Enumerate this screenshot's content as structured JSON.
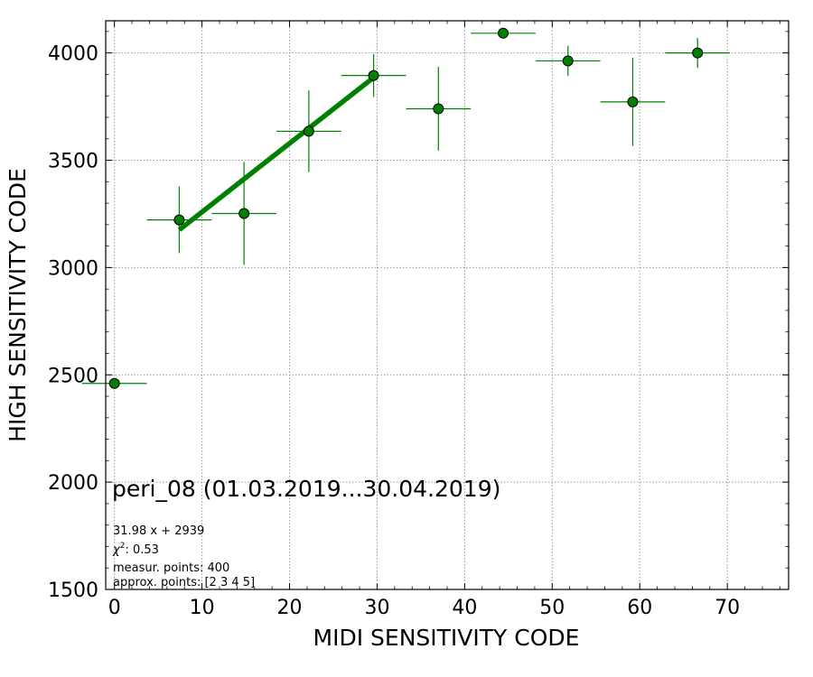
{
  "chart_data": {
    "type": "scatter",
    "xlabel": "MIDI SENSITIVITY CODE",
    "ylabel": "HIGH SENSITIVITY CODE",
    "xlim": [
      -1,
      77
    ],
    "ylim": [
      1500,
      4150
    ],
    "xticks": [
      0,
      10,
      20,
      30,
      40,
      50,
      60,
      70
    ],
    "yticks": [
      1500,
      2000,
      2500,
      3000,
      3500,
      4000
    ],
    "grid": true,
    "colors": {
      "points": "#008000",
      "fit_line": "#008000",
      "grid": "#999999"
    },
    "points": [
      {
        "x": 0.0,
        "y": 2460,
        "xerr": 3.7,
        "yerr": 25
      },
      {
        "x": 7.4,
        "y": 3222,
        "xerr": 3.7,
        "yerr": 155
      },
      {
        "x": 14.8,
        "y": 3252,
        "xerr": 3.7,
        "yerr": 240
      },
      {
        "x": 22.2,
        "y": 3635,
        "xerr": 3.7,
        "yerr": 190
      },
      {
        "x": 29.6,
        "y": 3895,
        "xerr": 3.7,
        "yerr": 100
      },
      {
        "x": 37.0,
        "y": 3740,
        "xerr": 3.7,
        "yerr": 195
      },
      {
        "x": 44.4,
        "y": 4092,
        "xerr": 3.7,
        "yerr": 10
      },
      {
        "x": 51.8,
        "y": 3963,
        "xerr": 3.7,
        "yerr": 70
      },
      {
        "x": 59.2,
        "y": 3772,
        "xerr": 3.7,
        "yerr": 205
      },
      {
        "x": 66.6,
        "y": 4000,
        "xerr": 3.7,
        "yerr": 70
      }
    ],
    "fit": {
      "slope": 31.98,
      "intercept": 2939,
      "x_range": [
        7.4,
        29.6
      ]
    },
    "annotations": {
      "title": "peri_08 (01.03.2019...30.04.2019)",
      "equation": "31.98 x + 2939",
      "chi2_prefix": "χ",
      "chi2_sup": "2",
      "chi2_value": ": 0.53",
      "measur": "measur. points: 400",
      "approx": "approx. points: [2 3 4 5]"
    }
  }
}
